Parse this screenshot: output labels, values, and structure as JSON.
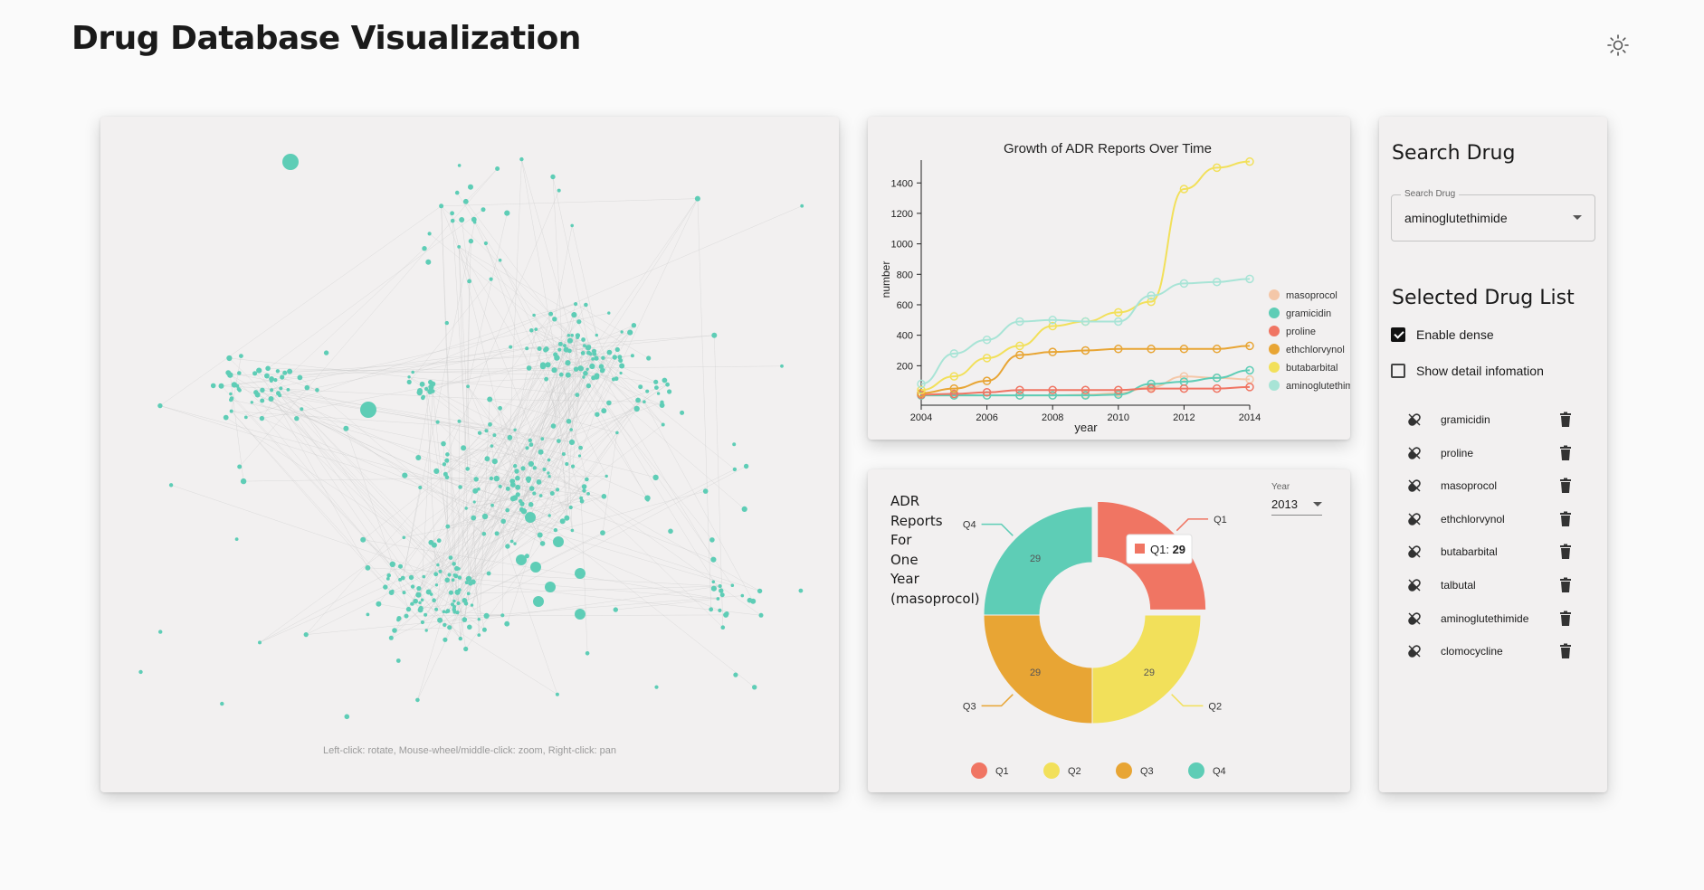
{
  "app": {
    "title": "Drug Database Visualization",
    "theme_icon": "sun-icon"
  },
  "graph": {
    "hint": "Left-click: rotate, Mouse-wheel/middle-click: zoom, Right-click: pan",
    "node_color": "#5ecdb6"
  },
  "line_chart": {
    "chart_data": {
      "type": "line",
      "title": "Growth of ADR Reports Over Time",
      "xlabel": "year",
      "ylabel": "number",
      "x": [
        2004,
        2005,
        2006,
        2007,
        2008,
        2009,
        2010,
        2011,
        2012,
        2013,
        2014
      ],
      "xticks": [
        2004,
        2006,
        2008,
        2010,
        2012,
        2014
      ],
      "yticks": [
        200,
        400,
        600,
        800,
        1000,
        1200,
        1400
      ],
      "ylim": [
        0,
        1550
      ],
      "legend_position": "right",
      "series": [
        {
          "name": "masoprocol",
          "color": "#f4c7a8",
          "values": [
            5,
            5,
            5,
            5,
            5,
            10,
            20,
            60,
            130,
            120,
            110
          ]
        },
        {
          "name": "gramicidin",
          "color": "#5ecdb6",
          "values": [
            5,
            5,
            5,
            5,
            5,
            5,
            10,
            80,
            95,
            120,
            170
          ]
        },
        {
          "name": "proline",
          "color": "#f07563",
          "values": [
            10,
            15,
            25,
            40,
            40,
            40,
            40,
            50,
            50,
            50,
            60
          ]
        },
        {
          "name": "ethchlorvynol",
          "color": "#e8a534",
          "values": [
            20,
            50,
            100,
            270,
            290,
            300,
            310,
            310,
            310,
            310,
            330
          ]
        },
        {
          "name": "butabarbital",
          "color": "#f2e05a",
          "values": [
            40,
            130,
            250,
            330,
            460,
            490,
            550,
            620,
            1360,
            1500,
            1540
          ]
        },
        {
          "name": "aminoglutethimide",
          "color": "#a8e4d6",
          "values": [
            80,
            280,
            370,
            490,
            500,
            490,
            490,
            660,
            740,
            750,
            770
          ]
        }
      ]
    }
  },
  "donut_chart": {
    "title_lines": [
      "ADR",
      "Reports",
      "For",
      "One",
      "Year",
      "(masoprocol)"
    ],
    "year_label": "Year",
    "year_value": "2013",
    "tooltip_label": "Q1: ",
    "tooltip_value": "29",
    "chart_data": {
      "type": "pie",
      "donut": true,
      "title": "ADR Reports For One Year (masoprocol)",
      "categories": [
        "Q1",
        "Q2",
        "Q3",
        "Q4"
      ],
      "values": [
        29,
        29,
        29,
        29
      ],
      "colors": [
        "#f07563",
        "#f2e05a",
        "#e8a534",
        "#5ecdb6"
      ],
      "legend_position": "bottom",
      "highlighted": "Q1"
    }
  },
  "sidebar": {
    "search_heading": "Search Drug",
    "search_label": "Search Drug",
    "search_value": "aminoglutethimide",
    "list_heading": "Selected Drug List",
    "enable_dense_label": "Enable dense",
    "enable_dense_checked": true,
    "detail_label": "Show detail infomation",
    "detail_checked": false,
    "drugs": [
      {
        "name": "gramicidin"
      },
      {
        "name": "proline"
      },
      {
        "name": "masoprocol"
      },
      {
        "name": "ethchlorvynol"
      },
      {
        "name": "butabarbital"
      },
      {
        "name": "talbutal"
      },
      {
        "name": "aminoglutethimide"
      },
      {
        "name": "clomocycline"
      }
    ],
    "drug_icon": "pill-icon",
    "delete_icon": "trash-icon"
  }
}
